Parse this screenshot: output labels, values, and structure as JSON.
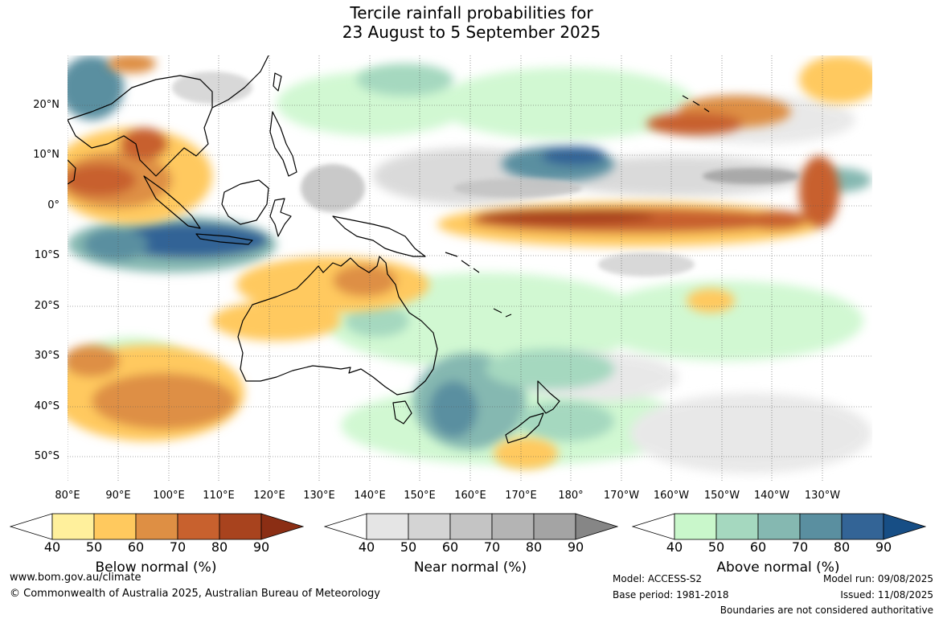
{
  "title_line1": "Tercile rainfall probabilities for",
  "title_line2": "23 August to 5 September 2025",
  "lat_labels": [
    "20°N",
    "10°N",
    "0°",
    "10°S",
    "20°S",
    "30°S",
    "40°S",
    "50°S"
  ],
  "lon_labels": [
    "80°E",
    "90°E",
    "100°E",
    "110°E",
    "120°E",
    "130°E",
    "140°E",
    "150°E",
    "160°E",
    "170°E",
    "180°",
    "170°W",
    "160°W",
    "150°W",
    "140°W",
    "130°W"
  ],
  "colorbars": [
    {
      "label": "Below normal (%)",
      "ticks": [
        "40",
        "50",
        "60",
        "70",
        "80",
        "90"
      ],
      "colors": [
        "#fff09c",
        "#ffc95e",
        "#de8f44",
        "#c8612e",
        "#a8431e",
        "#8b2e14"
      ]
    },
    {
      "label": "Near normal (%)",
      "ticks": [
        "40",
        "50",
        "60",
        "70",
        "80",
        "90"
      ],
      "colors": [
        "#e5e5e5",
        "#d4d4d4",
        "#c4c4c4",
        "#b4b4b4",
        "#a4a4a4",
        "#868686"
      ]
    },
    {
      "label": "Above normal (%)",
      "ticks": [
        "40",
        "50",
        "60",
        "70",
        "80",
        "90"
      ],
      "colors": [
        "#c9f7cb",
        "#a5d8bf",
        "#85b8b1",
        "#5a8fa0",
        "#336496",
        "#174e85"
      ]
    }
  ],
  "footer": {
    "website": "www.bom.gov.au/climate",
    "copyright": "© Commonwealth of Australia 2025, Australian Bureau of Meteorology",
    "model": "Model: ACCESS-S2",
    "base_period": "Base period: 1981-2018",
    "model_run": "Model run: 09/08/2025",
    "issued": "Issued: 11/08/2025",
    "boundaries": "Boundaries are not considered authoritative"
  }
}
